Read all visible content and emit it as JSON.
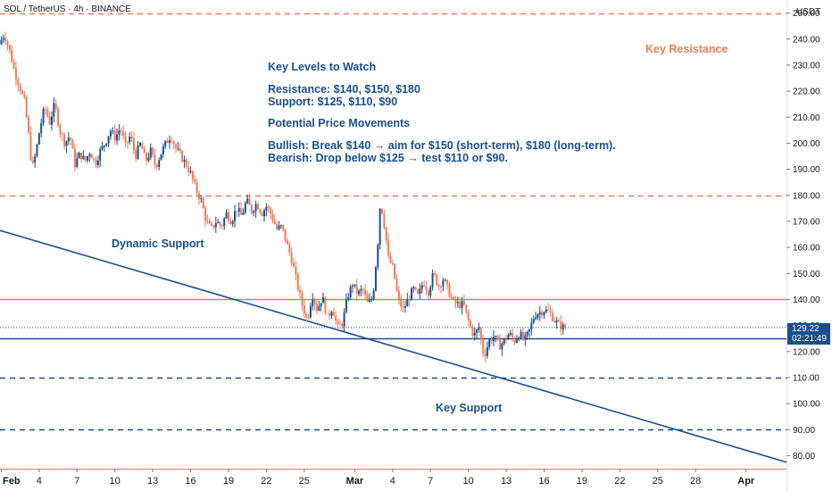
{
  "header": {
    "symbol_title": "SOL / TetherUS · 4h · BINANCE",
    "currency": "USDT"
  },
  "price_tag": {
    "price": "129.22",
    "countdown": "02:21:49"
  },
  "colors": {
    "up_candle": "#1a4f8f",
    "down_candle": "#f07b57",
    "resistance_line": "#f07b57",
    "support_line": "#1a4f8f",
    "text_blue": "#1a4f8f",
    "text_orange": "#f07b57"
  },
  "annotations": {
    "heading1": "Key Levels to Watch",
    "resistance": "Resistance: $140, $150, $180",
    "support": "Support: $125, $110, $90",
    "heading2": "Potential Price Movements",
    "bullish": "Bullish: Break $140 → aim for $150 (short-term), $180 (long-term).",
    "bearish": "Bearish: Drop below $125 → test $110 or $90.",
    "key_resistance": "Key Resistance",
    "dynamic_support": "Dynamic Support",
    "key_support": "Key Support"
  },
  "chart_data": {
    "type": "candlestick",
    "title": "SOL / TetherUS · 4h · BINANCE",
    "ylim": [
      75,
      255
    ],
    "y_ticks": [
      80,
      90,
      100,
      110,
      120,
      130,
      140,
      150,
      160,
      170,
      180,
      190,
      200,
      210,
      220,
      230,
      240,
      250
    ],
    "y_tick_labels": [
      "80.00",
      "90.00",
      "100.00",
      "110.00",
      "120.00",
      "130.00",
      "140.00",
      "150.00",
      "160.00",
      "170.00",
      "180.00",
      "190.00",
      "200.00",
      "210.00",
      "220.00",
      "230.00",
      "240.00",
      "250.00"
    ],
    "x_tick_labels": [
      "Feb",
      "4",
      "7",
      "10",
      "13",
      "16",
      "19",
      "22",
      "25",
      "Mar",
      "4",
      "7",
      "10",
      "13",
      "16",
      "19",
      "22",
      "25",
      "28",
      "Apr"
    ],
    "x_tick_days": [
      1,
      4,
      7,
      10,
      13,
      16,
      19,
      22,
      25,
      29,
      32,
      35,
      38,
      41,
      44,
      47,
      50,
      53,
      56,
      60
    ],
    "x_range_days": [
      0.9,
      63.2
    ],
    "horizontal_levels": [
      {
        "price": 250,
        "style": "dashed",
        "color": "#f07b57"
      },
      {
        "price": 180,
        "style": "dashed",
        "color": "#f07b57"
      },
      {
        "price": 140,
        "style": "solid",
        "color": "#f07b57"
      },
      {
        "price": 125,
        "style": "solid",
        "color": "#1a4f8f"
      },
      {
        "price": 110,
        "style": "dashed",
        "color": "#1a4f8f"
      },
      {
        "price": 90,
        "style": "dashed",
        "color": "#1a4f8f"
      }
    ],
    "trendline": {
      "start": {
        "day": 0.9,
        "price": 166.5
      },
      "end": {
        "day": 63.2,
        "price": 77.5
      }
    },
    "current_price": 129.22,
    "price_path": [
      [
        1.0,
        238
      ],
      [
        1.4,
        242
      ],
      [
        1.8,
        236
      ],
      [
        2.2,
        228
      ],
      [
        2.6,
        222
      ],
      [
        3.0,
        216
      ],
      [
        3.3,
        205
      ],
      [
        3.6,
        190
      ],
      [
        3.9,
        196
      ],
      [
        4.2,
        205
      ],
      [
        4.6,
        214
      ],
      [
        5.0,
        208
      ],
      [
        5.4,
        215
      ],
      [
        5.8,
        205
      ],
      [
        6.2,
        200
      ],
      [
        6.6,
        203
      ],
      [
        7.0,
        192
      ],
      [
        7.4,
        196
      ],
      [
        7.8,
        193
      ],
      [
        8.2,
        197
      ],
      [
        8.6,
        192
      ],
      [
        9.0,
        197
      ],
      [
        9.4,
        200
      ],
      [
        9.8,
        205
      ],
      [
        10.2,
        202
      ],
      [
        10.6,
        206
      ],
      [
        11.0,
        199
      ],
      [
        11.4,
        203
      ],
      [
        11.8,
        195
      ],
      [
        12.2,
        200
      ],
      [
        12.6,
        193
      ],
      [
        13.0,
        197
      ],
      [
        13.4,
        191
      ],
      [
        13.8,
        196
      ],
      [
        14.2,
        200
      ],
      [
        14.6,
        203
      ],
      [
        15.0,
        198
      ],
      [
        15.4,
        195
      ],
      [
        15.8,
        192
      ],
      [
        16.2,
        188
      ],
      [
        16.6,
        182
      ],
      [
        17.0,
        178
      ],
      [
        17.4,
        170
      ],
      [
        17.8,
        167
      ],
      [
        18.2,
        170
      ],
      [
        18.6,
        168
      ],
      [
        19.0,
        173
      ],
      [
        19.4,
        170
      ],
      [
        19.8,
        175
      ],
      [
        20.2,
        172
      ],
      [
        20.6,
        178
      ],
      [
        21.0,
        174
      ],
      [
        21.4,
        177
      ],
      [
        21.8,
        173
      ],
      [
        22.2,
        176
      ],
      [
        22.6,
        172
      ],
      [
        23.0,
        167
      ],
      [
        23.4,
        168
      ],
      [
        23.8,
        161
      ],
      [
        24.2,
        155
      ],
      [
        24.6,
        146
      ],
      [
        25.0,
        138
      ],
      [
        25.4,
        132
      ],
      [
        25.8,
        142
      ],
      [
        26.2,
        136
      ],
      [
        26.6,
        141
      ],
      [
        27.0,
        133
      ],
      [
        27.4,
        137
      ],
      [
        27.8,
        129
      ],
      [
        28.2,
        131
      ],
      [
        28.6,
        141
      ],
      [
        29.0,
        146
      ],
      [
        29.4,
        142
      ],
      [
        29.8,
        144
      ],
      [
        30.2,
        138
      ],
      [
        30.6,
        141
      ],
      [
        31.0,
        162
      ],
      [
        31.2,
        178
      ],
      [
        31.4,
        172
      ],
      [
        31.6,
        166
      ],
      [
        31.8,
        156
      ],
      [
        32.2,
        152
      ],
      [
        32.6,
        140
      ],
      [
        33.0,
        136
      ],
      [
        33.4,
        140
      ],
      [
        33.8,
        144
      ],
      [
        34.2,
        141
      ],
      [
        34.6,
        147
      ],
      [
        35.0,
        143
      ],
      [
        35.4,
        150
      ],
      [
        35.8,
        145
      ],
      [
        36.2,
        148
      ],
      [
        36.6,
        143
      ],
      [
        37.0,
        139
      ],
      [
        37.4,
        138
      ],
      [
        37.8,
        138
      ],
      [
        38.2,
        131
      ],
      [
        38.6,
        126
      ],
      [
        39.0,
        129
      ],
      [
        39.4,
        118
      ],
      [
        39.8,
        124
      ],
      [
        40.2,
        126
      ],
      [
        40.6,
        122
      ],
      [
        41.0,
        124
      ],
      [
        41.4,
        127
      ],
      [
        41.8,
        124
      ],
      [
        42.2,
        127
      ],
      [
        42.6,
        124
      ],
      [
        43.0,
        128
      ],
      [
        43.4,
        134
      ],
      [
        43.8,
        135
      ],
      [
        44.2,
        136
      ],
      [
        44.6,
        135
      ],
      [
        45.0,
        132
      ],
      [
        45.4,
        130
      ],
      [
        45.7,
        129.2
      ]
    ]
  }
}
